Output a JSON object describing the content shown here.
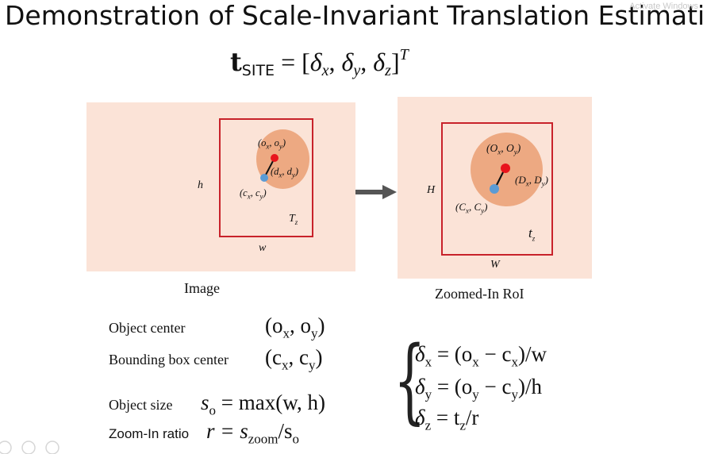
{
  "slide": {
    "title": "Demonstration of Scale-Invariant Translation Estimation",
    "watermark": "Activate Windows"
  },
  "main_equation": {
    "lhs_symbol": "t",
    "lhs_subscript": "SITE",
    "rhs_open": "= [",
    "d1": "δ",
    "s1": "x",
    "d2": "δ",
    "s2": "y",
    "d3": "δ",
    "s3": "z",
    "rhs_close": "]",
    "superscript": "T"
  },
  "image_panel": {
    "caption": "Image",
    "width_label": "w",
    "height_label": "h",
    "object_center": "(o",
    "oc_x": "x",
    "oc_mid": ", o",
    "oc_y": "y",
    "oc_end": ")",
    "offset": "(d",
    "off_x": "x",
    "off_mid": ", d",
    "off_y": "y",
    "off_end": ")",
    "box_center": "(c",
    "bc_x": "x",
    "bc_mid": ", c",
    "bc_y": "y",
    "bc_end": ")",
    "depth": "T",
    "depth_sub": "z"
  },
  "roi_panel": {
    "caption": "Zoomed-In RoI",
    "width_label": "W",
    "height_label": "H",
    "object_center": "(O",
    "oc_x": "x",
    "oc_mid": ", O",
    "oc_y": "y",
    "oc_end": ")",
    "offset": "(D",
    "off_x": "x",
    "off_mid": ", D",
    "off_y": "y",
    "off_end": ")",
    "box_center": "(C",
    "bc_x": "x",
    "bc_mid": ", C",
    "bc_y": "y",
    "bc_end": ")",
    "depth": "t",
    "depth_sub": "z"
  },
  "definitions": [
    {
      "label": "Object center",
      "math": "(o",
      "a": "x",
      "m": ", o",
      "b": "y",
      "e": ")"
    },
    {
      "label": "Bounding box center",
      "math": "(c",
      "a": "x",
      "m": ", c",
      "b": "y",
      "e": ")"
    },
    {
      "label": "Object size",
      "math": "s",
      "a": "o",
      "m": " = max(w, h)"
    },
    {
      "label": "Zoom-In ratio",
      "math": "r = s",
      "a": "zoom",
      "m": "/s",
      "b": "o"
    }
  ],
  "deltas": [
    {
      "sym": "δ",
      "sub": "x",
      "expr": " = (o",
      "s1": "x",
      "mid": " − c",
      "s2": "x",
      "end": ")/w"
    },
    {
      "sym": "δ",
      "sub": "y",
      "expr": " = (o",
      "s1": "y",
      "mid": " − c",
      "s2": "y",
      "end": ")/h"
    },
    {
      "sym": "δ",
      "sub": "z",
      "expr": " = t",
      "s1": "z",
      "end": "/r"
    }
  ],
  "colors": {
    "panel_bg": "#fbe3d7",
    "bbox_border": "#c8222a",
    "object_circle": "#eda982",
    "object_center_dot": "#e8141c",
    "box_center_dot": "#5b9bd5",
    "arrow": "#555555"
  }
}
